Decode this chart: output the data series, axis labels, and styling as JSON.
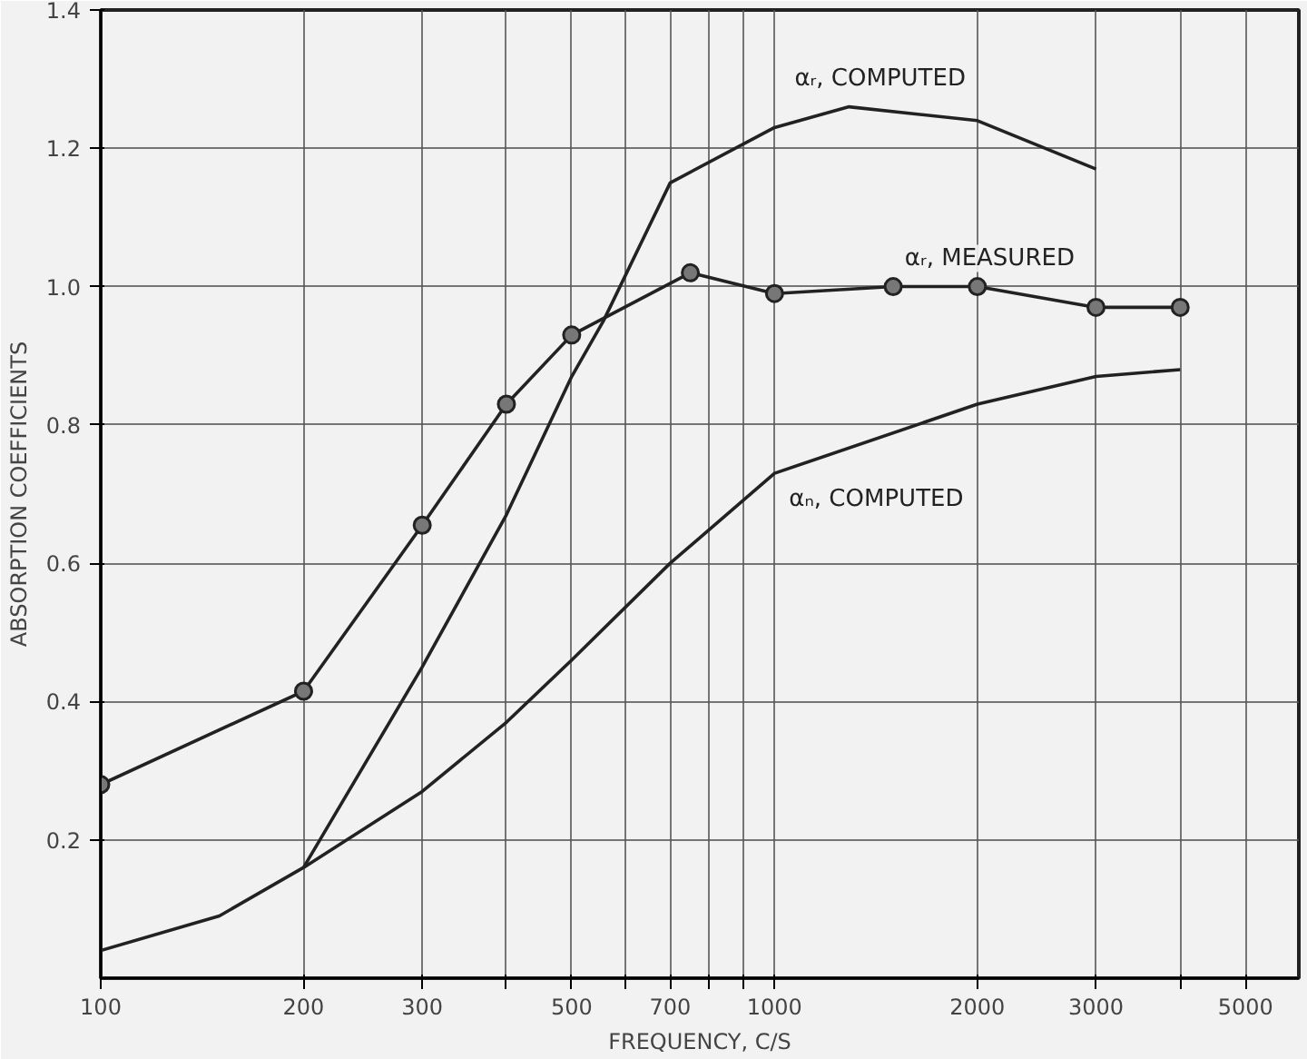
{
  "chart_data": {
    "type": "line",
    "xlabel": "FREQUENCY, C/S",
    "ylabel": "ABSORPTION COEFFICIENTS",
    "log": "x",
    "xlim": [
      100,
      6000
    ],
    "ylim": [
      0,
      1.4
    ],
    "xticks": [
      100,
      200,
      300,
      {
        "value": 400,
        "label": null
      },
      500,
      {
        "value": 600,
        "label": null
      },
      700,
      {
        "value": 800,
        "label": null
      },
      {
        "value": 900,
        "label": null
      },
      1000,
      2000,
      3000,
      {
        "value": 4000,
        "label": null
      },
      5000
    ],
    "yticks": [
      {
        "value": 0.2,
        "label": "0.2"
      },
      {
        "value": 0.4,
        "label": "0.4"
      },
      {
        "value": 0.6,
        "label": "0.6"
      },
      {
        "value": 0.8,
        "label": "0.8"
      },
      {
        "value": 1.0,
        "label": "1.0"
      },
      {
        "value": 1.2,
        "label": "1.2"
      },
      {
        "value": 1.4,
        "label": "1.4"
      }
    ],
    "grid": true,
    "series": [
      {
        "name": "αᵣ, COMPUTED",
        "color": "#222222",
        "marker": "none",
        "x": [
          200,
          300,
          400,
          500,
          557,
          700,
          1000,
          1290,
          2000,
          3000
        ],
        "values": [
          0.16,
          0.45,
          0.67,
          0.87,
          0.95,
          1.15,
          1.23,
          1.26,
          1.24,
          1.17
        ]
      },
      {
        "name": "αᵣ, MEASURED",
        "color": "#222222",
        "marker": "circle",
        "x": [
          100,
          200,
          300,
          400,
          500,
          750,
          1000,
          1500,
          2000,
          3000,
          4000
        ],
        "values": [
          0.28,
          0.415,
          0.655,
          0.83,
          0.93,
          1.02,
          0.99,
          1.0,
          1.0,
          0.97,
          0.97
        ]
      },
      {
        "name": "αₙ, COMPUTED",
        "color": "#222222",
        "marker": "none",
        "x": [
          100,
          150,
          200,
          300,
          400,
          500,
          700,
          1000,
          2000,
          3000,
          4000
        ],
        "values": [
          0.04,
          0.09,
          0.16,
          0.27,
          0.37,
          0.46,
          0.6,
          0.73,
          0.83,
          0.87,
          0.88
        ]
      }
    ]
  }
}
